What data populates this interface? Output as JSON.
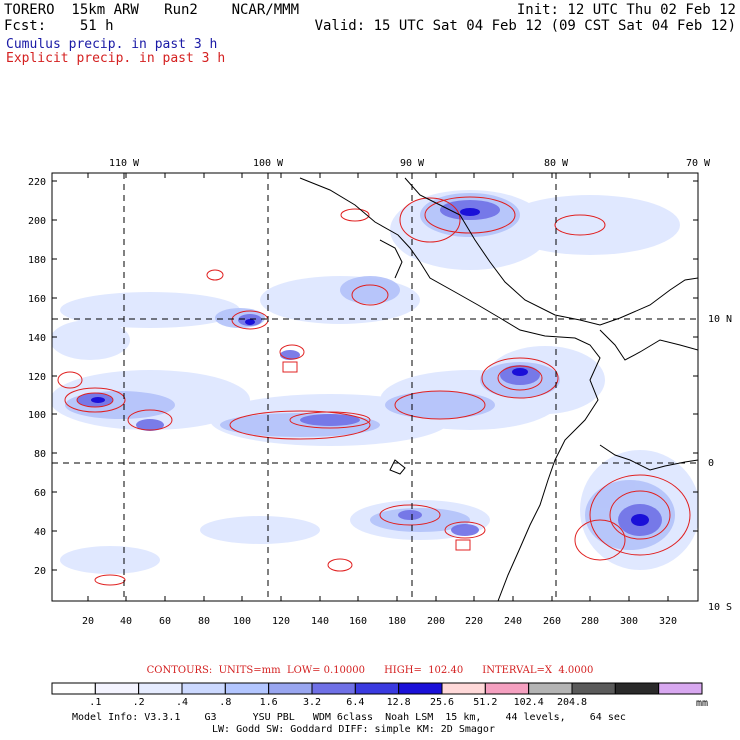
{
  "header": {
    "left_line1": "TORERO  15km ARW   Run2    NCAR/MMM",
    "left_line2": "Fcst:    51 h",
    "right_line1": "Init: 12 UTC Thu 02 Feb 12",
    "right_line2": "Valid: 15 UTC Sat 04 Feb 12 (09 CST Sat 04 Feb 12)",
    "cumulus_label": "Cumulus precip. in past 3 h",
    "explicit_label": "Explicit precip. in past 3 h"
  },
  "axes": {
    "top_lon_labels": [
      "110 W",
      "100 W",
      "90 W",
      "80 W",
      "70 W"
    ],
    "left_y_labels": [
      "220",
      "200",
      "180",
      "160",
      "140",
      "120",
      "100",
      "80",
      "60",
      "40",
      "20"
    ],
    "bottom_x_labels": [
      "20",
      "40",
      "60",
      "80",
      "100",
      "120",
      "140",
      "160",
      "180",
      "200",
      "220",
      "240",
      "260",
      "280",
      "300",
      "320"
    ],
    "right_lat_labels": [
      "10 N",
      "0",
      "10 S"
    ],
    "grid_range_x": [
      1,
      335
    ],
    "grid_range_y": [
      1,
      225
    ]
  },
  "contours_text": "CONTOURS:  UNITS=mm  LOW= 0.10000      HIGH=  102.40      INTERVAL=X  4.0000",
  "colorbar": {
    "labels": [
      ".1",
      ".2",
      ".4",
      ".8",
      "1.6",
      "3.2",
      "6.4",
      "12.8",
      "25.6",
      "51.2",
      "102.4",
      "204.8"
    ],
    "unit": "mm",
    "colors": [
      "#ffffff",
      "#f4f4ff",
      "#e6ecff",
      "#ccd9ff",
      "#b3c6ff",
      "#99a6f0",
      "#6f70e6",
      "#3a3ae0",
      "#1a10d8",
      "#ffd9d9",
      "#f5a0c0",
      "#b4b4b4",
      "#5a5a5a",
      "#2a2a2a",
      "#d8a8f0"
    ]
  },
  "model_info": {
    "line1": "Model Info: V3.3.1    G3      YSU PBL   WDM 6class  Noah LSM  15 km,    44 levels,    64 sec",
    "line2": "LW: Godd SW: Goddard DIFF: simple KM: 2D Smagor"
  }
}
